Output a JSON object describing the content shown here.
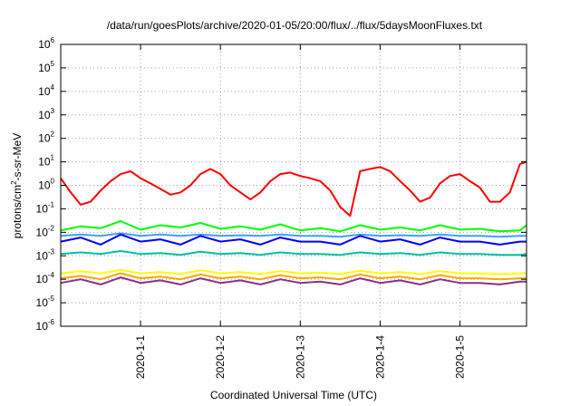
{
  "chart_data": {
    "type": "line",
    "title": "/data/run/goesPlots/archive/2020-01-05/20:00/flux/../flux/5daysMoonFluxes.txt",
    "xlabel": "Coordinated Universal Time (UTC)",
    "ylabel": "protons/cm2-s-sr-MeV",
    "ylabel_parts": {
      "base": "protons/cm",
      "sup": "2",
      "rest": "-s-sr-MeV"
    },
    "yscale": "log",
    "ylim": [
      1e-06,
      1000000.0
    ],
    "y_ticks": [
      {
        "exp": -6,
        "base": "10",
        "sup": "-6"
      },
      {
        "exp": -5,
        "base": "10",
        "sup": "-5"
      },
      {
        "exp": -4,
        "base": "10",
        "sup": "-4"
      },
      {
        "exp": -3,
        "base": "10",
        "sup": "-3"
      },
      {
        "exp": -2,
        "base": "10",
        "sup": "-2"
      },
      {
        "exp": -1,
        "base": "10",
        "sup": "-1"
      },
      {
        "exp": 0,
        "base": "10",
        "sup": "0"
      },
      {
        "exp": 1,
        "base": "10",
        "sup": "1"
      },
      {
        "exp": 2,
        "base": "10",
        "sup": "2"
      },
      {
        "exp": 3,
        "base": "10",
        "sup": "3"
      },
      {
        "exp": 4,
        "base": "10",
        "sup": "4"
      },
      {
        "exp": 5,
        "base": "10",
        "sup": "5"
      },
      {
        "exp": 6,
        "base": "10",
        "sup": "6"
      }
    ],
    "xlim": [
      "2019-12-31T00:00",
      "2020-01-05T20:00"
    ],
    "x_ticks": [
      {
        "label": "2020-1-1",
        "date": "2020-01-01T00:00"
      },
      {
        "label": "2020-1-2",
        "date": "2020-01-02T00:00"
      },
      {
        "label": "2020-1-3",
        "date": "2020-01-03T00:00"
      },
      {
        "label": "2020-1-4",
        "date": "2020-01-04T00:00"
      },
      {
        "label": "2020-1-5",
        "date": "2020-01-05T00:00"
      }
    ],
    "grid": true,
    "legend": "none",
    "series": [
      {
        "color": "#ff0000",
        "x": [
          "2019-12-31T00:00",
          "2019-12-31T03:00",
          "2019-12-31T06:00",
          "2019-12-31T09:00",
          "2019-12-31T12:00",
          "2019-12-31T15:00",
          "2019-12-31T18:00",
          "2019-12-31T21:00",
          "2020-01-01T00:00",
          "2020-01-01T03:00",
          "2020-01-01T06:00",
          "2020-01-01T09:00",
          "2020-01-01T12:00",
          "2020-01-01T15:00",
          "2020-01-01T18:00",
          "2020-01-01T21:00",
          "2020-01-02T00:00",
          "2020-01-02T03:00",
          "2020-01-02T06:00",
          "2020-01-02T09:00",
          "2020-01-02T12:00",
          "2020-01-02T15:00",
          "2020-01-02T18:00",
          "2020-01-02T21:00",
          "2020-01-03T00:00",
          "2020-01-03T03:00",
          "2020-01-03T06:00",
          "2020-01-03T09:00",
          "2020-01-03T12:00",
          "2020-01-03T15:00",
          "2020-01-03T18:00",
          "2020-01-03T21:00",
          "2020-01-04T00:00",
          "2020-01-04T03:00",
          "2020-01-04T06:00",
          "2020-01-04T09:00",
          "2020-01-04T12:00",
          "2020-01-04T15:00",
          "2020-01-04T18:00",
          "2020-01-04T21:00",
          "2020-01-05T00:00",
          "2020-01-05T03:00",
          "2020-01-05T06:00",
          "2020-01-05T09:00",
          "2020-01-05T12:00",
          "2020-01-05T15:00",
          "2020-01-05T18:00",
          "2020-01-05T20:00"
        ],
        "values": [
          2.0,
          0.5,
          0.15,
          0.2,
          0.6,
          1.5,
          3.0,
          4.0,
          2.0,
          1.2,
          0.7,
          0.4,
          0.5,
          1.0,
          3.0,
          5.0,
          3.0,
          1.0,
          0.5,
          0.25,
          0.5,
          1.5,
          3.0,
          3.5,
          2.5,
          2.0,
          1.5,
          0.6,
          0.12,
          0.05,
          4.0,
          5.0,
          6.0,
          4.0,
          1.5,
          0.6,
          0.2,
          0.3,
          1.2,
          2.5,
          3.0,
          1.5,
          0.8,
          0.2,
          0.2,
          0.5,
          8.0,
          10.0
        ]
      },
      {
        "color": "#00ff00",
        "x": [
          "2019-12-31T00:00",
          "2019-12-31T06:00",
          "2019-12-31T12:00",
          "2019-12-31T18:00",
          "2020-01-01T00:00",
          "2020-01-01T06:00",
          "2020-01-01T12:00",
          "2020-01-01T18:00",
          "2020-01-02T00:00",
          "2020-01-02T06:00",
          "2020-01-02T12:00",
          "2020-01-02T18:00",
          "2020-01-03T00:00",
          "2020-01-03T06:00",
          "2020-01-03T12:00",
          "2020-01-03T18:00",
          "2020-01-04T00:00",
          "2020-01-04T06:00",
          "2020-01-04T12:00",
          "2020-01-04T18:00",
          "2020-01-05T00:00",
          "2020-01-05T06:00",
          "2020-01-05T12:00",
          "2020-01-05T18:00",
          "2020-01-05T20:00"
        ],
        "values": [
          0.012,
          0.018,
          0.015,
          0.03,
          0.013,
          0.02,
          0.016,
          0.025,
          0.014,
          0.018,
          0.013,
          0.022,
          0.012,
          0.015,
          0.011,
          0.02,
          0.013,
          0.016,
          0.012,
          0.02,
          0.013,
          0.014,
          0.011,
          0.012,
          0.02
        ]
      },
      {
        "color": "#3fa0ff",
        "x": [
          "2019-12-31T00:00",
          "2019-12-31T06:00",
          "2019-12-31T12:00",
          "2019-12-31T18:00",
          "2020-01-01T00:00",
          "2020-01-01T06:00",
          "2020-01-01T12:00",
          "2020-01-01T18:00",
          "2020-01-02T00:00",
          "2020-01-02T06:00",
          "2020-01-02T12:00",
          "2020-01-02T18:00",
          "2020-01-03T00:00",
          "2020-01-03T06:00",
          "2020-01-03T12:00",
          "2020-01-03T18:00",
          "2020-01-04T00:00",
          "2020-01-04T06:00",
          "2020-01-04T12:00",
          "2020-01-04T18:00",
          "2020-01-05T00:00",
          "2020-01-05T06:00",
          "2020-01-05T12:00",
          "2020-01-05T18:00",
          "2020-01-05T20:00"
        ],
        "values": [
          0.007,
          0.008,
          0.007,
          0.009,
          0.007,
          0.008,
          0.007,
          0.008,
          0.007,
          0.0075,
          0.007,
          0.008,
          0.007,
          0.007,
          0.0065,
          0.008,
          0.007,
          0.0075,
          0.007,
          0.008,
          0.007,
          0.007,
          0.0065,
          0.007,
          0.007
        ]
      },
      {
        "color": "#0000ff",
        "x": [
          "2019-12-31T00:00",
          "2019-12-31T06:00",
          "2019-12-31T12:00",
          "2019-12-31T18:00",
          "2020-01-01T00:00",
          "2020-01-01T06:00",
          "2020-01-01T12:00",
          "2020-01-01T18:00",
          "2020-01-02T00:00",
          "2020-01-02T06:00",
          "2020-01-02T12:00",
          "2020-01-02T18:00",
          "2020-01-03T00:00",
          "2020-01-03T06:00",
          "2020-01-03T12:00",
          "2020-01-03T18:00",
          "2020-01-04T00:00",
          "2020-01-04T06:00",
          "2020-01-04T12:00",
          "2020-01-04T18:00",
          "2020-01-05T00:00",
          "2020-01-05T06:00",
          "2020-01-05T12:00",
          "2020-01-05T18:00",
          "2020-01-05T20:00"
        ],
        "values": [
          0.004,
          0.006,
          0.003,
          0.008,
          0.004,
          0.005,
          0.003,
          0.007,
          0.004,
          0.005,
          0.003,
          0.006,
          0.004,
          0.004,
          0.003,
          0.007,
          0.004,
          0.005,
          0.003,
          0.006,
          0.004,
          0.004,
          0.003,
          0.004,
          0.004
        ]
      },
      {
        "color": "#00c0a0",
        "x": [
          "2019-12-31T00:00",
          "2019-12-31T06:00",
          "2019-12-31T12:00",
          "2019-12-31T18:00",
          "2020-01-01T00:00",
          "2020-01-01T06:00",
          "2020-01-01T12:00",
          "2020-01-01T18:00",
          "2020-01-02T00:00",
          "2020-01-02T06:00",
          "2020-01-02T12:00",
          "2020-01-02T18:00",
          "2020-01-03T00:00",
          "2020-01-03T06:00",
          "2020-01-03T12:00",
          "2020-01-03T18:00",
          "2020-01-04T00:00",
          "2020-01-04T06:00",
          "2020-01-04T12:00",
          "2020-01-04T18:00",
          "2020-01-05T00:00",
          "2020-01-05T06:00",
          "2020-01-05T12:00",
          "2020-01-05T18:00",
          "2020-01-05T20:00"
        ],
        "values": [
          0.0012,
          0.0014,
          0.0012,
          0.0016,
          0.0012,
          0.0013,
          0.0011,
          0.0015,
          0.0012,
          0.0013,
          0.0011,
          0.0014,
          0.0012,
          0.0012,
          0.0011,
          0.0014,
          0.0012,
          0.0013,
          0.0011,
          0.0014,
          0.0012,
          0.0012,
          0.0011,
          0.0011,
          0.0012
        ]
      },
      {
        "color": "#ffff00",
        "x": [
          "2019-12-31T00:00",
          "2019-12-31T06:00",
          "2019-12-31T12:00",
          "2019-12-31T18:00",
          "2020-01-01T00:00",
          "2020-01-01T06:00",
          "2020-01-01T12:00",
          "2020-01-01T18:00",
          "2020-01-02T00:00",
          "2020-01-02T06:00",
          "2020-01-02T12:00",
          "2020-01-02T18:00",
          "2020-01-03T00:00",
          "2020-01-03T06:00",
          "2020-01-03T12:00",
          "2020-01-03T18:00",
          "2020-01-04T00:00",
          "2020-01-04T06:00",
          "2020-01-04T12:00",
          "2020-01-04T18:00",
          "2020-01-05T00:00",
          "2020-01-05T06:00",
          "2020-01-05T12:00",
          "2020-01-05T18:00",
          "2020-01-05T20:00"
        ],
        "values": [
          0.00018,
          0.00022,
          0.00018,
          0.00025,
          0.00018,
          0.0002,
          0.00017,
          0.00024,
          0.00018,
          0.0002,
          0.00017,
          0.00022,
          0.00018,
          0.00019,
          0.00017,
          0.00023,
          0.00018,
          0.0002,
          0.00017,
          0.00022,
          0.00018,
          0.00018,
          0.00017,
          0.00018,
          0.00018
        ]
      },
      {
        "color": "#ffa500",
        "x": [
          "2019-12-31T00:00",
          "2019-12-31T06:00",
          "2019-12-31T12:00",
          "2019-12-31T18:00",
          "2020-01-01T00:00",
          "2020-01-01T06:00",
          "2020-01-01T12:00",
          "2020-01-01T18:00",
          "2020-01-02T00:00",
          "2020-01-02T06:00",
          "2020-01-02T12:00",
          "2020-01-02T18:00",
          "2020-01-03T00:00",
          "2020-01-03T06:00",
          "2020-01-03T12:00",
          "2020-01-03T18:00",
          "2020-01-04T00:00",
          "2020-01-04T06:00",
          "2020-01-04T12:00",
          "2020-01-04T18:00",
          "2020-01-05T00:00",
          "2020-01-05T06:00",
          "2020-01-05T12:00",
          "2020-01-05T18:00",
          "2020-01-05T20:00"
        ],
        "values": [
          0.00011,
          0.00014,
          0.0001,
          0.00018,
          0.00011,
          0.00013,
          0.0001,
          0.00016,
          0.00011,
          0.00013,
          0.0001,
          0.00015,
          0.00011,
          0.00012,
          0.0001,
          0.00016,
          0.00011,
          0.00013,
          0.0001,
          0.00015,
          0.00011,
          0.00011,
          0.0001,
          0.00011,
          0.00011
        ]
      },
      {
        "color": "#8b2f8b",
        "x": [
          "2019-12-31T00:00",
          "2019-12-31T06:00",
          "2019-12-31T12:00",
          "2019-12-31T18:00",
          "2020-01-01T00:00",
          "2020-01-01T06:00",
          "2020-01-01T12:00",
          "2020-01-01T18:00",
          "2020-01-02T00:00",
          "2020-01-02T06:00",
          "2020-01-02T12:00",
          "2020-01-02T18:00",
          "2020-01-03T00:00",
          "2020-01-03T06:00",
          "2020-01-03T12:00",
          "2020-01-03T18:00",
          "2020-01-04T00:00",
          "2020-01-04T06:00",
          "2020-01-04T12:00",
          "2020-01-04T18:00",
          "2020-01-05T00:00",
          "2020-01-05T06:00",
          "2020-01-05T12:00",
          "2020-01-05T18:00",
          "2020-01-05T20:00"
        ],
        "values": [
          7e-05,
          0.0001,
          6e-05,
          0.00012,
          7e-05,
          9e-05,
          6e-05,
          0.00011,
          7e-05,
          9e-05,
          6e-05,
          0.0001,
          7e-05,
          8e-05,
          6e-05,
          0.00011,
          7e-05,
          9e-05,
          6e-05,
          0.0001,
          7e-05,
          7e-05,
          6e-05,
          8e-05,
          8e-05
        ]
      }
    ]
  }
}
